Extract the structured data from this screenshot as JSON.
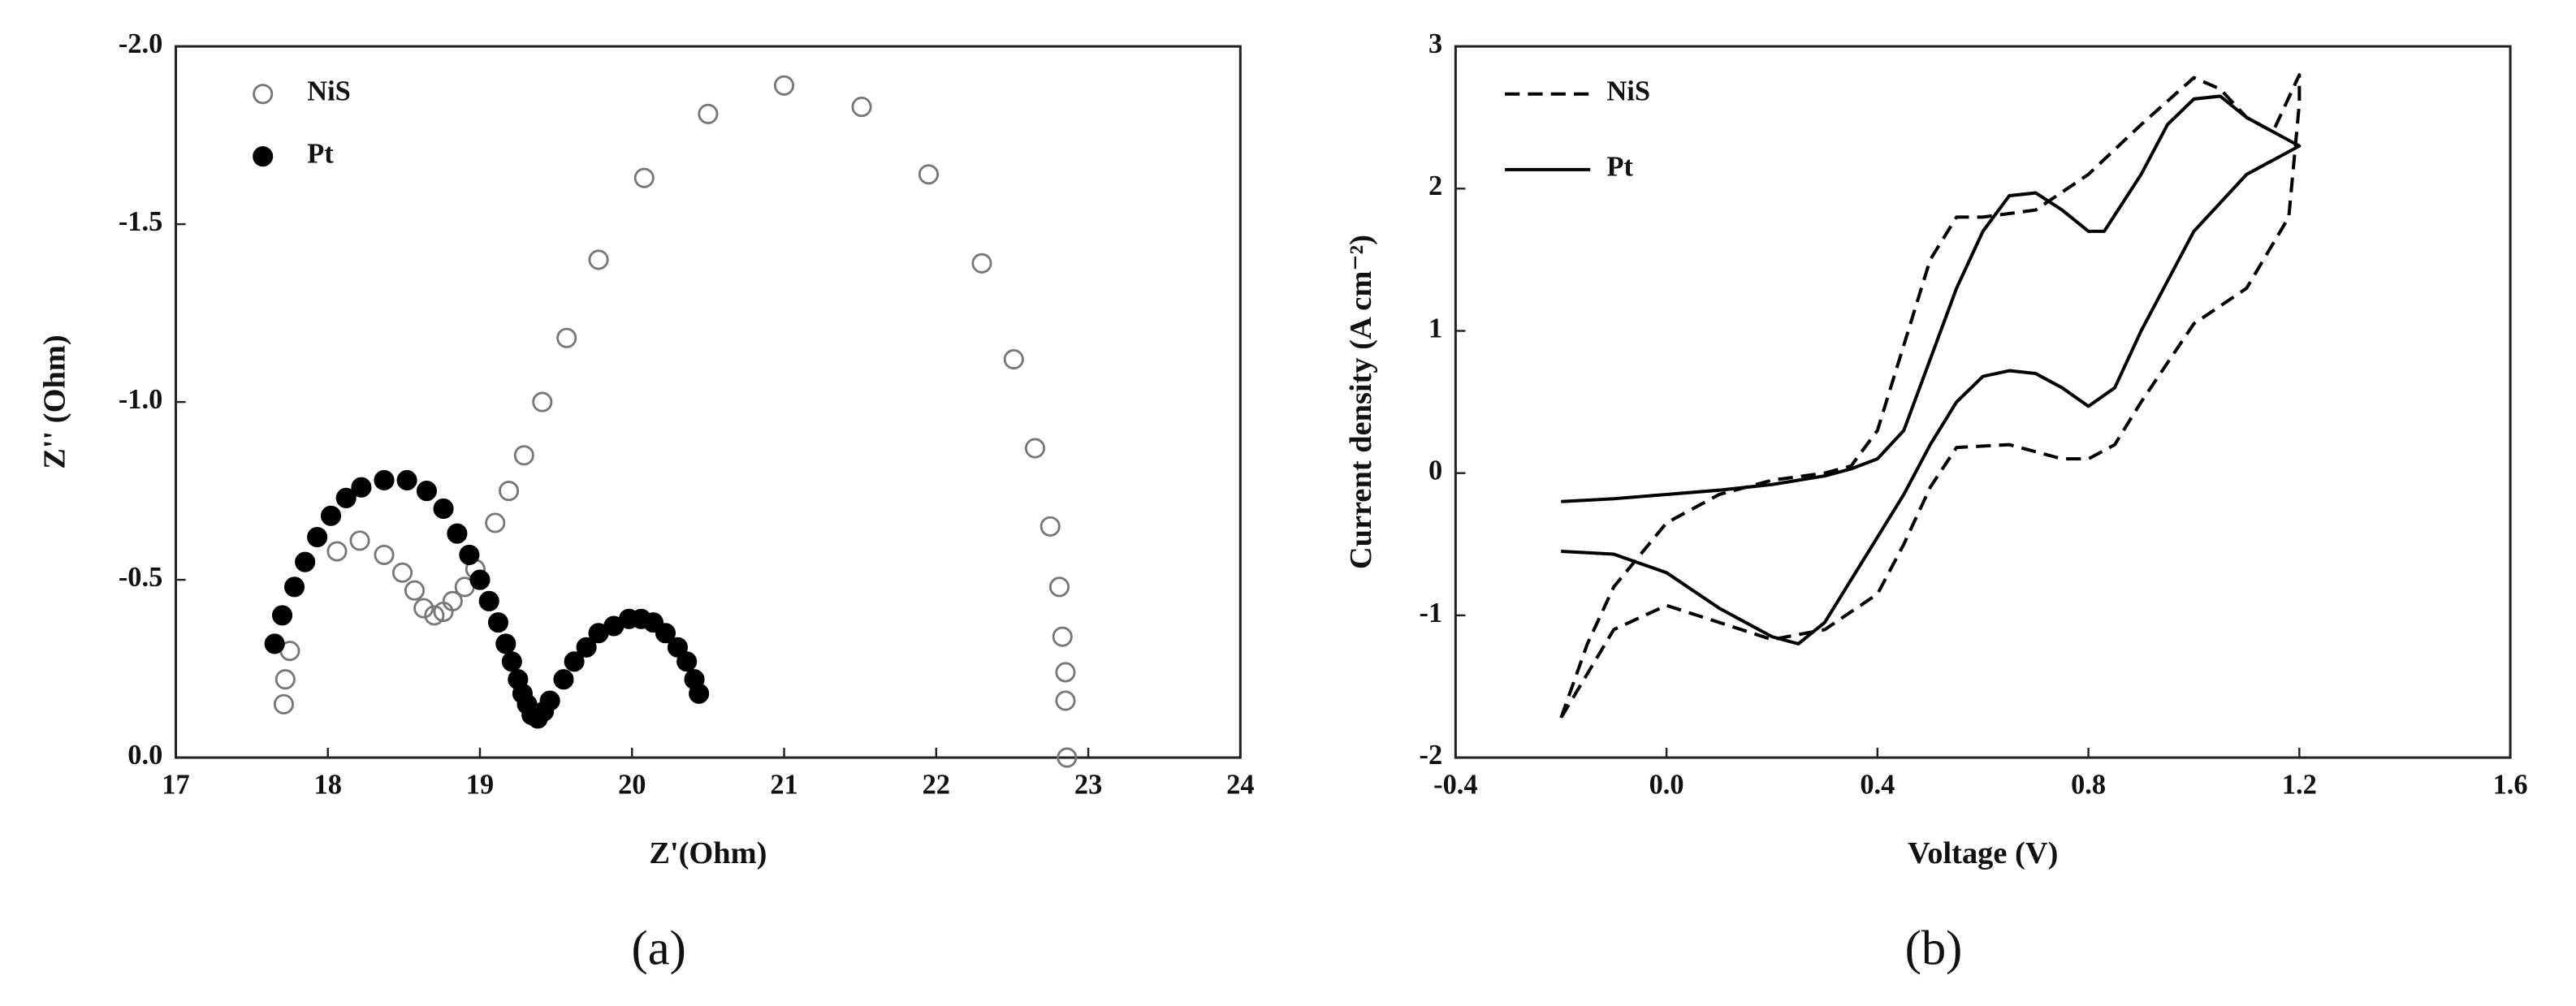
{
  "chart_data": [
    {
      "type": "scatter",
      "caption": "(a)",
      "xlabel": "Z'(Ohm)",
      "ylabel": "Z'' (Ohm)",
      "xlim": [
        17,
        24
      ],
      "xticks": [
        17,
        18,
        19,
        20,
        21,
        22,
        23,
        24
      ],
      "ylim": [
        0,
        -2
      ],
      "yticks": [
        {
          "value": 0,
          "label": "0.0"
        },
        -0.5,
        {
          "value": -1,
          "label": "-1.0"
        },
        -1.5,
        {
          "value": -2,
          "label": "-2.0"
        }
      ],
      "legend": "upper left",
      "series": [
        {
          "name": "NiS",
          "color": "#777777",
          "marker": "open",
          "x": [
            17.71,
            17.72,
            17.75,
            18.06,
            18.21,
            18.37,
            18.49,
            18.57,
            18.63,
            18.7,
            18.76,
            18.82,
            18.9,
            18.97,
            19.1,
            19.19,
            19.29,
            19.41,
            19.57,
            19.78,
            20.08,
            20.5,
            21.0,
            21.51,
            21.95,
            22.3,
            22.51,
            22.65,
            22.75,
            22.81,
            22.83,
            22.85,
            22.85,
            22.86
          ],
          "values": [
            -0.15,
            -0.22,
            -0.3,
            -0.58,
            -0.61,
            -0.57,
            -0.52,
            -0.47,
            -0.42,
            -0.4,
            -0.41,
            -0.44,
            -0.48,
            -0.53,
            -0.66,
            -0.75,
            -0.85,
            -1.0,
            -1.18,
            -1.4,
            -1.63,
            -1.81,
            -1.89,
            -1.83,
            -1.64,
            -1.39,
            -1.12,
            -0.87,
            -0.65,
            -0.48,
            -0.34,
            -0.24,
            -0.16,
            0.0
          ]
        },
        {
          "name": "Pt",
          "color": "#000000",
          "marker": "filled",
          "x": [
            17.65,
            17.7,
            17.78,
            17.85,
            17.93,
            18.02,
            18.12,
            18.22,
            18.37,
            18.52,
            18.65,
            18.76,
            18.85,
            18.93,
            19.0,
            19.06,
            19.12,
            19.17,
            19.21,
            19.25,
            19.28,
            19.31,
            19.34,
            19.38,
            19.42,
            19.46,
            19.55,
            19.62,
            19.7,
            19.78,
            19.88,
            19.98,
            20.06,
            20.14,
            20.22,
            20.3,
            20.36,
            20.41,
            20.44
          ],
          "values": [
            -0.32,
            -0.4,
            -0.48,
            -0.55,
            -0.62,
            -0.68,
            -0.73,
            -0.76,
            -0.78,
            -0.78,
            -0.75,
            -0.7,
            -0.63,
            -0.57,
            -0.5,
            -0.44,
            -0.38,
            -0.32,
            -0.27,
            -0.22,
            -0.18,
            -0.15,
            -0.12,
            -0.11,
            -0.13,
            -0.16,
            -0.22,
            -0.27,
            -0.31,
            -0.35,
            -0.37,
            -0.39,
            -0.39,
            -0.38,
            -0.35,
            -0.31,
            -0.27,
            -0.22,
            -0.18
          ]
        }
      ]
    },
    {
      "type": "line",
      "caption": "(b)",
      "xlabel": "Voltage (V)",
      "ylabel": "Current density (A cm⁻²)",
      "xlim": [
        -0.4,
        1.6
      ],
      "xticks": [
        -0.4,
        {
          "value": 0,
          "label": "0.0"
        },
        0.4,
        0.8,
        1.2,
        1.6
      ],
      "ylim": [
        -2,
        3
      ],
      "yticks": [
        -2,
        -1,
        0,
        1,
        2,
        3
      ],
      "legend": "upper left",
      "series": [
        {
          "name": "NiS",
          "color": "#000000",
          "dash": "dashed",
          "x": [
            -0.2,
            -0.15,
            -0.1,
            0.0,
            0.1,
            0.2,
            0.3,
            0.35,
            0.4,
            0.45,
            0.5,
            0.55,
            0.6,
            0.7,
            0.8,
            0.9,
            1.0,
            1.05,
            1.1,
            1.15,
            1.2,
            1.2,
            1.18,
            1.1,
            1.0,
            0.9,
            0.85,
            0.8,
            0.75,
            0.65,
            0.55,
            0.5,
            0.45,
            0.4,
            0.3,
            0.2,
            0.1,
            0.0,
            -0.1,
            -0.2
          ],
          "values": [
            -1.72,
            -1.2,
            -0.8,
            -0.35,
            -0.15,
            -0.05,
            0.0,
            0.05,
            0.3,
            0.9,
            1.5,
            1.8,
            1.8,
            1.85,
            2.1,
            2.45,
            2.78,
            2.7,
            2.5,
            2.4,
            2.8,
            2.6,
            1.8,
            1.3,
            1.05,
            0.5,
            0.2,
            0.1,
            0.1,
            0.2,
            0.18,
            -0.1,
            -0.5,
            -0.85,
            -1.1,
            -1.17,
            -1.05,
            -0.93,
            -1.1,
            -1.72
          ]
        },
        {
          "name": "Pt",
          "color": "#000000",
          "dash": "solid",
          "x": [
            -0.2,
            -0.1,
            0.0,
            0.1,
            0.2,
            0.3,
            0.35,
            0.4,
            0.45,
            0.5,
            0.55,
            0.6,
            0.65,
            0.7,
            0.75,
            0.8,
            0.83,
            0.9,
            0.95,
            1.0,
            1.05,
            1.1,
            1.15,
            1.2,
            1.1,
            1.0,
            0.9,
            0.85,
            0.8,
            0.75,
            0.7,
            0.65,
            0.6,
            0.55,
            0.5,
            0.45,
            0.4,
            0.35,
            0.3,
            0.25,
            0.2,
            0.1,
            0.0,
            -0.1,
            -0.2
          ],
          "values": [
            -0.2,
            -0.18,
            -0.15,
            -0.12,
            -0.08,
            -0.02,
            0.03,
            0.1,
            0.3,
            0.8,
            1.3,
            1.7,
            1.95,
            1.97,
            1.85,
            1.7,
            1.7,
            2.1,
            2.45,
            2.63,
            2.65,
            2.5,
            2.4,
            2.3,
            2.1,
            1.7,
            1.0,
            0.6,
            0.47,
            0.6,
            0.7,
            0.72,
            0.68,
            0.5,
            0.2,
            -0.15,
            -0.45,
            -0.75,
            -1.05,
            -1.2,
            -1.15,
            -0.95,
            -0.7,
            -0.57,
            -0.55
          ]
        }
      ]
    }
  ]
}
